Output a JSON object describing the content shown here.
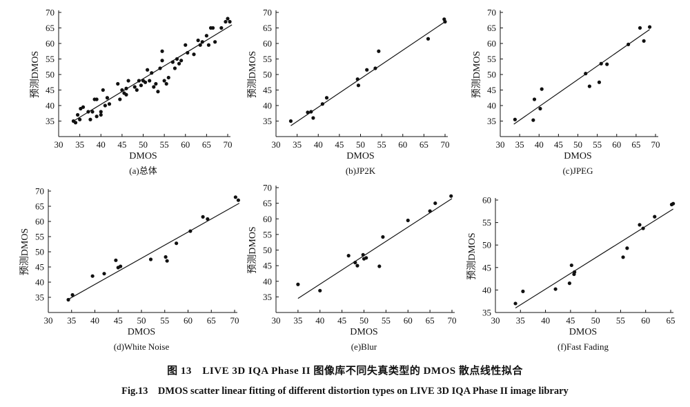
{
  "figure": {
    "caption_cn": "图 13　LIVE 3D IQA Phase II 图像库不同失真类型的 DMOS 散点线性拟合",
    "caption_en": "Fig.13　DMOS scatter linear fitting of different distortion types on LIVE 3D IQA Phase II image library"
  },
  "chart_data": [
    {
      "type": "scatter",
      "caption": "(a)总体",
      "xlabel": "DMOS",
      "ylabel": "预测DMOS",
      "xlim": [
        30,
        70
      ],
      "ylim": [
        30,
        70
      ],
      "xticks": [
        30,
        35,
        40,
        45,
        50,
        55,
        60,
        65,
        70
      ],
      "yticks": [
        35,
        40,
        45,
        50,
        55,
        60,
        65,
        70
      ],
      "fit_line": [
        [
          33.5,
          35
        ],
        [
          71,
          66
        ]
      ],
      "points": [
        [
          33.5,
          35
        ],
        [
          34,
          34.5
        ],
        [
          34.5,
          37
        ],
        [
          35,
          35.5
        ],
        [
          35.2,
          39
        ],
        [
          35.8,
          39.5
        ],
        [
          37,
          38
        ],
        [
          37.5,
          35.5
        ],
        [
          38,
          38
        ],
        [
          38.5,
          42
        ],
        [
          39,
          42
        ],
        [
          39,
          36.5
        ],
        [
          40,
          38
        ],
        [
          40,
          37
        ],
        [
          40.5,
          45
        ],
        [
          41,
          40
        ],
        [
          41.5,
          42.5
        ],
        [
          42,
          40.5
        ],
        [
          44.5,
          42
        ],
        [
          44,
          47
        ],
        [
          45,
          45
        ],
        [
          45.5,
          44
        ],
        [
          46,
          43.5
        ],
        [
          46,
          45.5
        ],
        [
          46.5,
          48
        ],
        [
          48,
          46
        ],
        [
          48.5,
          45
        ],
        [
          49,
          48
        ],
        [
          49.5,
          46.5
        ],
        [
          50,
          48
        ],
        [
          50.5,
          47.5
        ],
        [
          51,
          51.5
        ],
        [
          51.5,
          48
        ],
        [
          52,
          50.5
        ],
        [
          52.5,
          46
        ],
        [
          53,
          47
        ],
        [
          53.5,
          44.5
        ],
        [
          54,
          52
        ],
        [
          54.5,
          57.5
        ],
        [
          54.5,
          54.5
        ],
        [
          55,
          48
        ],
        [
          55.5,
          47
        ],
        [
          56,
          49
        ],
        [
          57,
          54
        ],
        [
          57.5,
          52
        ],
        [
          58,
          55
        ],
        [
          58.5,
          53.5
        ],
        [
          59,
          54.5
        ],
        [
          60,
          59.5
        ],
        [
          60.5,
          57
        ],
        [
          62,
          56.5
        ],
        [
          63,
          61
        ],
        [
          63.5,
          59.5
        ],
        [
          64,
          60.5
        ],
        [
          65,
          62.5
        ],
        [
          65.5,
          59.5
        ],
        [
          66,
          65
        ],
        [
          66.5,
          65
        ],
        [
          67,
          60.5
        ],
        [
          68.5,
          65
        ],
        [
          69.5,
          67
        ],
        [
          70,
          68
        ],
        [
          70.5,
          67
        ]
      ]
    },
    {
      "type": "scatter",
      "caption": "(b)JP2K",
      "xlabel": "DMOS",
      "ylabel": "预测DMOS",
      "xlim": [
        30,
        70
      ],
      "ylim": [
        30,
        70
      ],
      "xticks": [
        30,
        35,
        40,
        45,
        50,
        55,
        60,
        65,
        70
      ],
      "yticks": [
        35,
        40,
        45,
        50,
        55,
        60,
        65,
        70
      ],
      "fit_line": [
        [
          33.5,
          33.5
        ],
        [
          70,
          67
        ]
      ],
      "points": [
        [
          33.5,
          35
        ],
        [
          37.5,
          37.8
        ],
        [
          38.3,
          38
        ],
        [
          38.8,
          36
        ],
        [
          41,
          40.5
        ],
        [
          42,
          42.5
        ],
        [
          49.3,
          48.5
        ],
        [
          49.5,
          46.5
        ],
        [
          51.5,
          51.5
        ],
        [
          53.5,
          52
        ],
        [
          54.3,
          57.5
        ],
        [
          66,
          61.5
        ],
        [
          69.8,
          67.8
        ],
        [
          70,
          67
        ]
      ]
    },
    {
      "type": "scatter",
      "caption": "(c)JPEG",
      "xlabel": "DMOS",
      "ylabel": "预测DMOS",
      "xlim": [
        30,
        70
      ],
      "ylim": [
        30,
        70
      ],
      "xticks": [
        30,
        35,
        40,
        45,
        50,
        55,
        60,
        65,
        70
      ],
      "yticks": [
        35,
        40,
        45,
        50,
        55,
        60,
        65,
        70
      ],
      "fit_line": [
        [
          33.5,
          34
        ],
        [
          68.5,
          64.5
        ]
      ],
      "points": [
        [
          33.8,
          35.5
        ],
        [
          38.5,
          35.3
        ],
        [
          38.8,
          42
        ],
        [
          40.3,
          39
        ],
        [
          40.7,
          45.3
        ],
        [
          52,
          50.3
        ],
        [
          53,
          46.2
        ],
        [
          55.5,
          47.5
        ],
        [
          56,
          53.5
        ],
        [
          57.5,
          53.3
        ],
        [
          63,
          59.7
        ],
        [
          66,
          65
        ],
        [
          67,
          60.8
        ],
        [
          68.5,
          65.3
        ]
      ]
    },
    {
      "type": "scatter",
      "caption": "(d)White Noise",
      "xlabel": "DMOS",
      "ylabel": "预测DMOS",
      "xlim": [
        30,
        70
      ],
      "ylim": [
        30,
        70
      ],
      "xticks": [
        30,
        35,
        40,
        45,
        50,
        55,
        60,
        65,
        70
      ],
      "yticks": [
        35,
        40,
        45,
        50,
        55,
        60,
        65,
        70
      ],
      "fit_line": [
        [
          34.5,
          34.5
        ],
        [
          71,
          66
        ]
      ],
      "points": [
        [
          34.3,
          34.2
        ],
        [
          35.2,
          35.8
        ],
        [
          39.5,
          42
        ],
        [
          42,
          42.8
        ],
        [
          44.5,
          47.2
        ],
        [
          45,
          44.8
        ],
        [
          45.5,
          45.2
        ],
        [
          52,
          47.5
        ],
        [
          55.2,
          48.3
        ],
        [
          55.5,
          47
        ],
        [
          57.5,
          52.8
        ],
        [
          60.5,
          56.8
        ],
        [
          63.2,
          61.5
        ],
        [
          64.2,
          60.8
        ],
        [
          70.2,
          68
        ],
        [
          70.8,
          67
        ]
      ]
    },
    {
      "type": "scatter",
      "caption": "(e)Blur",
      "xlabel": "DMOS",
      "ylabel": "预测DMOS",
      "xlim": [
        30,
        70
      ],
      "ylim": [
        30,
        70
      ],
      "xticks": [
        30,
        35,
        40,
        45,
        50,
        55,
        60,
        65,
        70
      ],
      "yticks": [
        35,
        40,
        45,
        50,
        55,
        60,
        65,
        70
      ],
      "fit_line": [
        [
          35,
          34.5
        ],
        [
          70,
          66.5
        ]
      ],
      "points": [
        [
          35,
          39
        ],
        [
          40,
          37
        ],
        [
          46.5,
          48.2
        ],
        [
          48,
          46
        ],
        [
          48.5,
          45
        ],
        [
          49.8,
          48.5
        ],
        [
          50,
          47.2
        ],
        [
          50.5,
          47.5
        ],
        [
          53.5,
          44.8
        ],
        [
          54.3,
          54.2
        ],
        [
          60,
          59.5
        ],
        [
          65,
          62.5
        ],
        [
          66.2,
          65
        ],
        [
          69.8,
          67.3
        ]
      ]
    },
    {
      "type": "scatter",
      "caption": "(f)Fast Fading",
      "xlabel": "DMOS",
      "ylabel": "预测DMOS",
      "xlim": [
        30,
        65
      ],
      "ylim": [
        35,
        60
      ],
      "xticks": [
        30,
        35,
        40,
        45,
        50,
        55,
        60,
        65
      ],
      "yticks": [
        35,
        40,
        45,
        50,
        55,
        60
      ],
      "fit_line": [
        [
          34,
          36
        ],
        [
          65.5,
          58
        ]
      ],
      "points": [
        [
          34,
          37
        ],
        [
          35.5,
          39.7
        ],
        [
          42,
          40.2
        ],
        [
          44.8,
          41.5
        ],
        [
          45.2,
          45.5
        ],
        [
          45.7,
          43.5
        ],
        [
          45.8,
          44
        ],
        [
          55.5,
          47.3
        ],
        [
          56.3,
          49.3
        ],
        [
          58.8,
          54.5
        ],
        [
          59.5,
          53.7
        ],
        [
          61.8,
          56.3
        ],
        [
          65.2,
          59
        ],
        [
          65.5,
          59.2
        ]
      ]
    }
  ]
}
